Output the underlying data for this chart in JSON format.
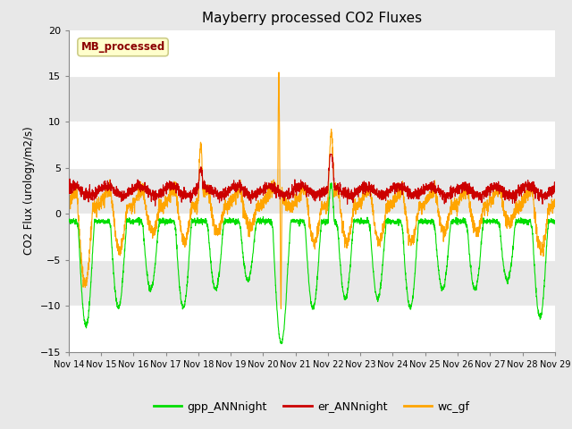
{
  "title": "Mayberry processed CO2 Fluxes",
  "ylabel": "CO2 Flux (urology/m2/s)",
  "ylim": [
    -15,
    20
  ],
  "yticks": [
    -15,
    -10,
    -5,
    0,
    5,
    10,
    15,
    20
  ],
  "legend_label": "MB_processed",
  "legend_color_text": "#8B0000",
  "legend_box_facecolor": "#FFFFCC",
  "legend_box_edge": "#CCCC88",
  "fig_bg_color": "#E8E8E8",
  "plot_bg_color": "#FFFFFF",
  "band_color_light": "#E8E8E8",
  "band_color_dark": "#D8D8D8",
  "gpp_color": "#00DD00",
  "er_color": "#CC0000",
  "wc_color": "#FFA500",
  "line_width": 0.8,
  "legend_items": [
    "gpp_ANNnight",
    "er_ANNnight",
    "wc_gf"
  ],
  "legend_colors": [
    "#00DD00",
    "#CC0000",
    "#FFA500"
  ],
  "xtick_labels": [
    "Nov 14",
    "Nov 15",
    "Nov 16",
    "Nov 17",
    "Nov 18",
    "Nov 19",
    "Nov 20",
    "Nov 21",
    "Nov 22",
    "Nov 23",
    "Nov 24",
    "Nov 25",
    "Nov 26",
    "Nov 27",
    "Nov 28",
    "Nov 29"
  ],
  "n_points": 3000
}
